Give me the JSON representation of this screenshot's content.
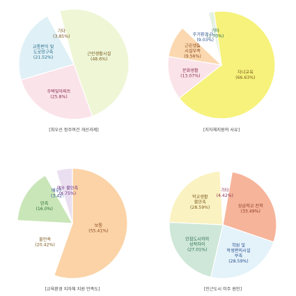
{
  "chart_data": [
    {
      "type": "pie",
      "caption": "[최우선 정주여건 개선과제]",
      "slices": [
        {
          "label": "근린생활시설",
          "value": 48.6,
          "value_text": "(48.6%)",
          "color": "#eef6d6",
          "text_color": "#7a5a1f"
        },
        {
          "label": "주택및아파트",
          "value": 25.8,
          "value_text": "(25.8%)",
          "color": "#fbe3ea",
          "text_color": "#8a2d4f"
        },
        {
          "label": "교통편익 및 도로망구축",
          "value": 21.52,
          "value_text": "(21.52%)",
          "color": "#dff0f6",
          "text_color": "#2a6f8f"
        },
        {
          "label": "기타",
          "value": 3.85,
          "value_text": "(3.85%)",
          "color": "#ffffff",
          "text_color": "#7a5a1f"
        }
      ]
    },
    {
      "type": "pie",
      "caption": "[지자체지원의 사유]",
      "slices": [
        {
          "label": "자녀교육",
          "value": 66.63,
          "value_text": "(66.63%)",
          "color": "#f6f27b",
          "text_color": "#7a5a1f"
        },
        {
          "label": "문화생활",
          "value": 13.07,
          "value_text": "(13.07%)",
          "color": "#fbe3ea",
          "text_color": "#8a2d4f"
        },
        {
          "label": "근린생활 시설부족",
          "value": 9.56,
          "value_text": "(9.56%)",
          "color": "#fbd8b0",
          "text_color": "#8a4a1f"
        },
        {
          "label": "주거환경 미비",
          "value": 9.03,
          "value_text": "(9.03%)",
          "color": "#ffffff",
          "text_color": "#2a4f8f"
        },
        {
          "label": "기타",
          "value": 1.7,
          "value_text": "(1.70%)",
          "color": "#e4f1e2",
          "text_color": "#2a6f4f"
        }
      ]
    },
    {
      "type": "pie",
      "caption": "[교육환경 지자체 지원 만족도]",
      "slices": [
        {
          "label": "보통",
          "value": 55.41,
          "value_text": "(55.41%)",
          "color": "#fbd3a6",
          "text_color": "#8a4a1f"
        },
        {
          "label": "불만족",
          "value": 20.42,
          "value_text": "(20.42%)",
          "color": "#ffffff",
          "text_color": "#7a5a1f"
        },
        {
          "label": "만족",
          "value": 16.0,
          "value_text": "(16.0%)",
          "color": "#c9e6b8",
          "text_color": "#2a6f2f"
        },
        {
          "label": "매우만족",
          "value": 3.42,
          "value_text": "(3.42%)",
          "color": "#ffffff",
          "text_color": "#2a4f8f"
        },
        {
          "label": "매우 불만족",
          "value": 4.75,
          "value_text": "(4.75%)",
          "color": "#eadff0",
          "text_color": "#6a2d7f"
        }
      ]
    },
    {
      "type": "pie",
      "caption": "[인근도시 이주 원인]",
      "slices": [
        {
          "label": "상급학교 진학",
          "value": 33.49,
          "value_text": "(33.49%)",
          "color": "#f6b49a",
          "text_color": "#8a3a1f"
        },
        {
          "label": "학원 및 학생편의시설 부족",
          "value": 28.59,
          "value_text": "(28.59%)",
          "color": "#e4f2fa",
          "text_color": "#2a4f8f"
        },
        {
          "label": "인접도시와의 성적차이",
          "value": 27.01,
          "value_text": "(27.01%)",
          "color": "#cfe7d8",
          "text_color": "#2a6f4f"
        },
        {
          "label": "학교생활 불만족",
          "value": 28.59,
          "value_text": "(28.59%)",
          "color": "#fbf2c2",
          "text_color": "#7a5a1f"
        },
        {
          "label": "기타",
          "value": 4.42,
          "value_text": "(4.42%)",
          "color": "#ffffff",
          "text_color": "#8a2d4f"
        }
      ]
    }
  ]
}
